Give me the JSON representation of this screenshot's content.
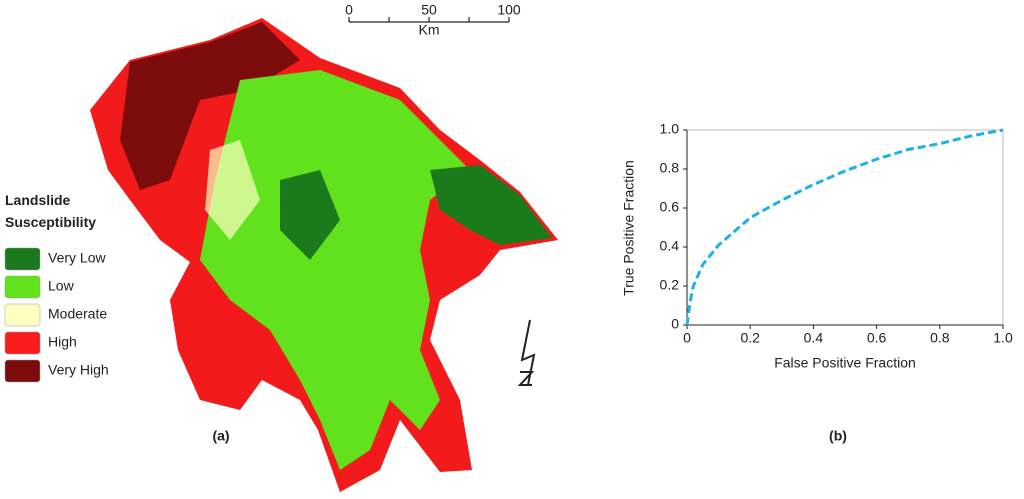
{
  "map": {
    "legend": {
      "title": "Landslide Susceptibility",
      "items": [
        {
          "name": "Very Low",
          "color": "#1b7a1b"
        },
        {
          "name": "Low",
          "color": "#62e21c"
        },
        {
          "name": "Moderate",
          "color": "#ffffc2"
        },
        {
          "name": "High",
          "color": "#fb1c1c"
        },
        {
          "name": "Very High",
          "color": "#7c0c0c"
        }
      ]
    },
    "scale": {
      "labels": [
        "0",
        "50",
        "100"
      ],
      "unit": "Km"
    },
    "caption": "(a)"
  },
  "chart_data": {
    "type": "line",
    "caption": "(b)",
    "x_label": "False Positive Fraction",
    "y_label": "True Positive Fraction",
    "x": [
      0,
      0.01,
      0.02,
      0.05,
      0.1,
      0.2,
      0.3,
      0.4,
      0.5,
      0.6,
      0.7,
      0.8,
      0.9,
      1
    ],
    "series": [
      {
        "color": "#1fb0e6",
        "values": [
          0,
          0.12,
          0.2,
          0.31,
          0.41,
          0.55,
          0.64,
          0.72,
          0.79,
          0.85,
          0.9,
          0.93,
          0.97,
          1
        ]
      }
    ],
    "xlim": [
      0,
      1
    ],
    "ylim": [
      0,
      1
    ],
    "xticks": [
      0,
      0.2,
      0.4,
      0.6,
      0.8,
      {
        "value": 1,
        "label": "1.0"
      }
    ],
    "yticks": [
      0,
      0.2,
      0.4,
      0.6,
      0.8,
      {
        "value": 1,
        "label": "1.0"
      }
    ]
  }
}
